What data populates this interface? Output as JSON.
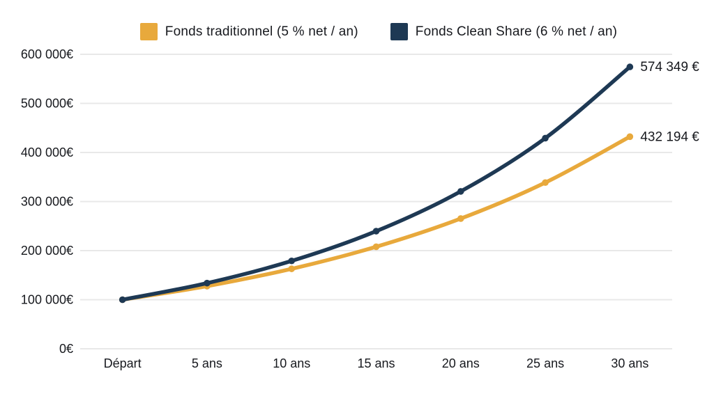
{
  "legend": {
    "items": [
      {
        "label": "Fonds traditionnel (5 % net / an)",
        "color": "#E8A93C"
      },
      {
        "label": "Fonds Clean Share (6 % net / an)",
        "color": "#1E3954"
      }
    ]
  },
  "chart_data": {
    "type": "line",
    "title": "",
    "xlabel": "",
    "ylabel": "",
    "categories": [
      "Départ",
      "5 ans",
      "10 ans",
      "15 ans",
      "20 ans",
      "25 ans",
      "30 ans"
    ],
    "series": [
      {
        "name": "Fonds traditionnel (5 % net / an)",
        "color": "#E8A93C",
        "values": [
          100000,
          127628,
          162889,
          207893,
          265330,
          338635,
          432194
        ],
        "end_label": "432 194 €"
      },
      {
        "name": "Fonds Clean Share (6 % net / an)",
        "color": "#1E3954",
        "values": [
          100000,
          133823,
          179085,
          239656,
          320714,
          429187,
          574349
        ],
        "end_label": "574 349 €"
      }
    ],
    "y_ticks": [
      {
        "value": 0,
        "label": "0€"
      },
      {
        "value": 100000,
        "label": "100 000€"
      },
      {
        "value": 200000,
        "label": "200 000€"
      },
      {
        "value": 300000,
        "label": "300 000€"
      },
      {
        "value": 400000,
        "label": "400 000€"
      },
      {
        "value": 500000,
        "label": "500 000€"
      },
      {
        "value": 600000,
        "label": "600 000€"
      }
    ],
    "ylim": [
      0,
      600000
    ],
    "grid": true,
    "grid_color": "#e8e8e8",
    "text_color": "#17191e",
    "legend_position": "top"
  }
}
